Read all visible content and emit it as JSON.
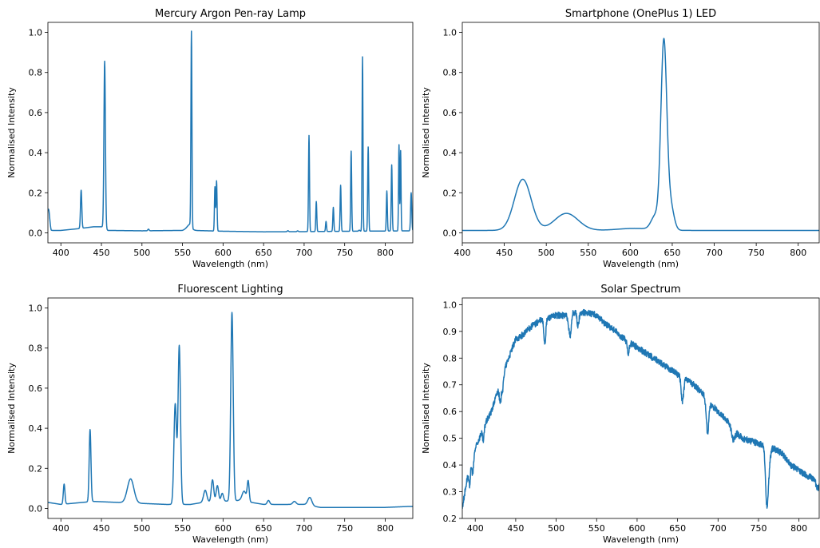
{
  "figure": {
    "background": "#ffffff",
    "line_color": "#1f77b4"
  },
  "chart_data": [
    {
      "id": "p0",
      "type": "line",
      "title": "Mercury Argon Pen-ray Lamp",
      "xlabel": "Wavelength (nm)",
      "ylabel": "Normalised Intensity",
      "xlim": [
        384,
        834
      ],
      "ylim": [
        -0.05,
        1.05
      ],
      "xticks": [
        400,
        450,
        500,
        550,
        600,
        650,
        700,
        750,
        800
      ],
      "yticks": [
        0.0,
        0.2,
        0.4,
        0.6,
        0.8,
        1.0
      ],
      "ytick_labels": [
        "0.0",
        "0.2",
        "0.4",
        "0.6",
        "0.8",
        "1.0"
      ],
      "series": [
        {
          "baseline": [
            [
              384,
              0.07
            ],
            [
              388,
              0.012
            ],
            [
              400,
              0.012
            ],
            [
              420,
              0.02
            ],
            [
              440,
              0.03
            ],
            [
              453,
              0.03
            ],
            [
              458,
              0.012
            ],
            [
              500,
              0.01
            ],
            [
              550,
              0.012
            ],
            [
              560,
              0.03
            ],
            [
              563,
              0.012
            ],
            [
              600,
              0.008
            ],
            [
              650,
              0.005
            ],
            [
              700,
              0.006
            ],
            [
              760,
              0.008
            ],
            [
              800,
              0.009
            ],
            [
              834,
              0.01
            ]
          ],
          "peaks": [
            [
              385,
              0.06,
              1.2
            ],
            [
              425,
              0.19,
              0.8
            ],
            [
              454,
              0.83,
              0.9
            ],
            [
              508,
              0.008,
              0.8
            ],
            [
              559,
              0.015,
              3
            ],
            [
              561,
              0.97,
              0.6
            ],
            [
              590,
              0.22,
              0.6
            ],
            [
              592,
              0.25,
              0.6
            ],
            [
              680,
              0.005,
              0.8
            ],
            [
              692,
              0.004,
              0.8
            ],
            [
              706,
              0.48,
              0.6
            ],
            [
              715,
              0.15,
              0.6
            ],
            [
              727,
              0.05,
              0.6
            ],
            [
              736,
              0.12,
              0.6
            ],
            [
              745,
              0.23,
              0.6
            ],
            [
              758,
              0.4,
              0.6
            ],
            [
              768,
              0.005,
              0.8
            ],
            [
              772,
              0.87,
              0.55
            ],
            [
              779,
              0.42,
              0.6
            ],
            [
              802,
              0.2,
              0.6
            ],
            [
              808,
              0.33,
              0.6
            ],
            [
              817,
              0.43,
              0.55
            ],
            [
              819,
              0.4,
              0.5
            ],
            [
              832,
              0.19,
              0.7
            ]
          ]
        }
      ]
    },
    {
      "id": "p1",
      "type": "line",
      "title": "Smartphone (OnePlus 1) LED",
      "xlabel": "Wavelength (nm)",
      "ylabel": "Normalised Intensity",
      "xlim": [
        400,
        825
      ],
      "ylim": [
        -0.05,
        1.05
      ],
      "xticks": [
        400,
        450,
        500,
        550,
        600,
        650,
        700,
        750,
        800
      ],
      "yticks": [
        0.0,
        0.2,
        0.4,
        0.6,
        0.8,
        1.0
      ],
      "ytick_labels": [
        "0.0",
        "0.2",
        "0.4",
        "0.6",
        "0.8",
        "1.0"
      ],
      "series": [
        {
          "baseline": [
            [
              400,
              0.012
            ],
            [
              825,
              0.012
            ]
          ],
          "peaks": [
            [
              472,
              0.255,
              10
            ],
            [
              524,
              0.085,
              14
            ],
            [
              605,
              0.01,
              20
            ],
            [
              630,
              0.07,
              5
            ],
            [
              640,
              0.93,
              3.5
            ],
            [
              648,
              0.12,
              4
            ]
          ]
        }
      ]
    },
    {
      "id": "p2",
      "type": "line",
      "title": "Fluorescent Lighting",
      "xlabel": "Wavelength (nm)",
      "ylabel": "Normalised Intensity",
      "xlim": [
        384,
        834
      ],
      "ylim": [
        -0.05,
        1.05
      ],
      "xticks": [
        400,
        450,
        500,
        550,
        600,
        650,
        700,
        750,
        800
      ],
      "yticks": [
        0.0,
        0.2,
        0.4,
        0.6,
        0.8,
        1.0
      ],
      "ytick_labels": [
        "0.0",
        "0.2",
        "0.4",
        "0.6",
        "0.8",
        "1.0"
      ],
      "series": [
        {
          "baseline": [
            [
              384,
              0.03
            ],
            [
              400,
              0.02
            ],
            [
              440,
              0.035
            ],
            [
              470,
              0.03
            ],
            [
              500,
              0.025
            ],
            [
              530,
              0.02
            ],
            [
              560,
              0.02
            ],
            [
              575,
              0.03
            ],
            [
              620,
              0.04
            ],
            [
              650,
              0.02
            ],
            [
              700,
              0.02
            ],
            [
              720,
              0.005
            ],
            [
              800,
              0.005
            ],
            [
              830,
              0.01
            ]
          ],
          "peaks": [
            [
              404,
              0.1,
              1
            ],
            [
              436,
              0.36,
              1.1
            ],
            [
              486,
              0.12,
              4
            ],
            [
              541,
              0.5,
              1.6
            ],
            [
              546,
              0.79,
              1.5
            ],
            [
              578,
              0.06,
              2
            ],
            [
              587,
              0.11,
              1.5
            ],
            [
              593,
              0.08,
              1.5
            ],
            [
              599,
              0.04,
              1.5
            ],
            [
              611,
              0.94,
              1.5
            ],
            [
              626,
              0.05,
              2.5
            ],
            [
              631,
              0.1,
              1.2
            ],
            [
              656,
              0.02,
              1.5
            ],
            [
              688,
              0.015,
              2
            ],
            [
              707,
              0.04,
              2.5
            ]
          ]
        }
      ]
    },
    {
      "id": "p3",
      "type": "line",
      "title": "Solar Spectrum",
      "xlabel": "Wavelength (nm)",
      "ylabel": "Normalised Intensity",
      "xlim": [
        384,
        825
      ],
      "ylim": [
        0.2,
        1.025
      ],
      "xticks": [
        400,
        450,
        500,
        550,
        600,
        650,
        700,
        750,
        800
      ],
      "yticks": [
        0.2,
        0.3,
        0.4,
        0.5,
        0.6,
        0.7,
        0.8,
        0.9,
        1.0
      ],
      "ytick_labels": [
        "0.2",
        "0.3",
        "0.4",
        "0.5",
        "0.6",
        "0.7",
        "0.8",
        "0.9",
        "1.0"
      ],
      "series": [
        {
          "baseline": [
            [
              384,
              0.24
            ],
            [
              390,
              0.35
            ],
            [
              400,
              0.46
            ],
            [
              410,
              0.54
            ],
            [
              420,
              0.6
            ],
            [
              430,
              0.7
            ],
            [
              440,
              0.79
            ],
            [
              450,
              0.87
            ],
            [
              460,
              0.89
            ],
            [
              470,
              0.92
            ],
            [
              480,
              0.94
            ],
            [
              490,
              0.95
            ],
            [
              500,
              0.96
            ],
            [
              510,
              0.96
            ],
            [
              520,
              0.97
            ],
            [
              530,
              0.97
            ],
            [
              540,
              0.97
            ],
            [
              550,
              0.96
            ],
            [
              560,
              0.93
            ],
            [
              570,
              0.91
            ],
            [
              580,
              0.88
            ],
            [
              590,
              0.86
            ],
            [
              600,
              0.84
            ],
            [
              610,
              0.82
            ],
            [
              620,
              0.8
            ],
            [
              630,
              0.78
            ],
            [
              640,
              0.76
            ],
            [
              650,
              0.74
            ],
            [
              660,
              0.72
            ],
            [
              670,
              0.7
            ],
            [
              680,
              0.67
            ],
            [
              690,
              0.63
            ],
            [
              700,
              0.6
            ],
            [
              710,
              0.57
            ],
            [
              720,
              0.53
            ],
            [
              730,
              0.5
            ],
            [
              740,
              0.49
            ],
            [
              750,
              0.48
            ],
            [
              760,
              0.47
            ],
            [
              770,
              0.46
            ],
            [
              780,
              0.44
            ],
            [
              790,
              0.4
            ],
            [
              800,
              0.38
            ],
            [
              810,
              0.36
            ],
            [
              825,
              0.34
            ]
          ],
          "dips": [
            [
              393,
              0.06,
              1
            ],
            [
              397,
              0.06,
              1
            ],
            [
              410,
              0.05,
              1
            ],
            [
              431,
              0.08,
              1.2
            ],
            [
              434,
              0.05,
              1
            ],
            [
              486,
              0.09,
              1.2
            ],
            [
              516,
              0.06,
              1.5
            ],
            [
              518,
              0.05,
              1
            ],
            [
              527,
              0.05,
              1.2
            ],
            [
              589,
              0.05,
              1.2
            ],
            [
              656,
              0.09,
              1.5
            ],
            [
              687,
              0.12,
              1.5
            ],
            [
              719,
              0.04,
              2
            ],
            [
              760,
              0.16,
              1.5
            ],
            [
              762,
              0.1,
              2
            ],
            [
              823,
              0.03,
              2
            ]
          ],
          "noise": 0.012
        }
      ]
    }
  ]
}
